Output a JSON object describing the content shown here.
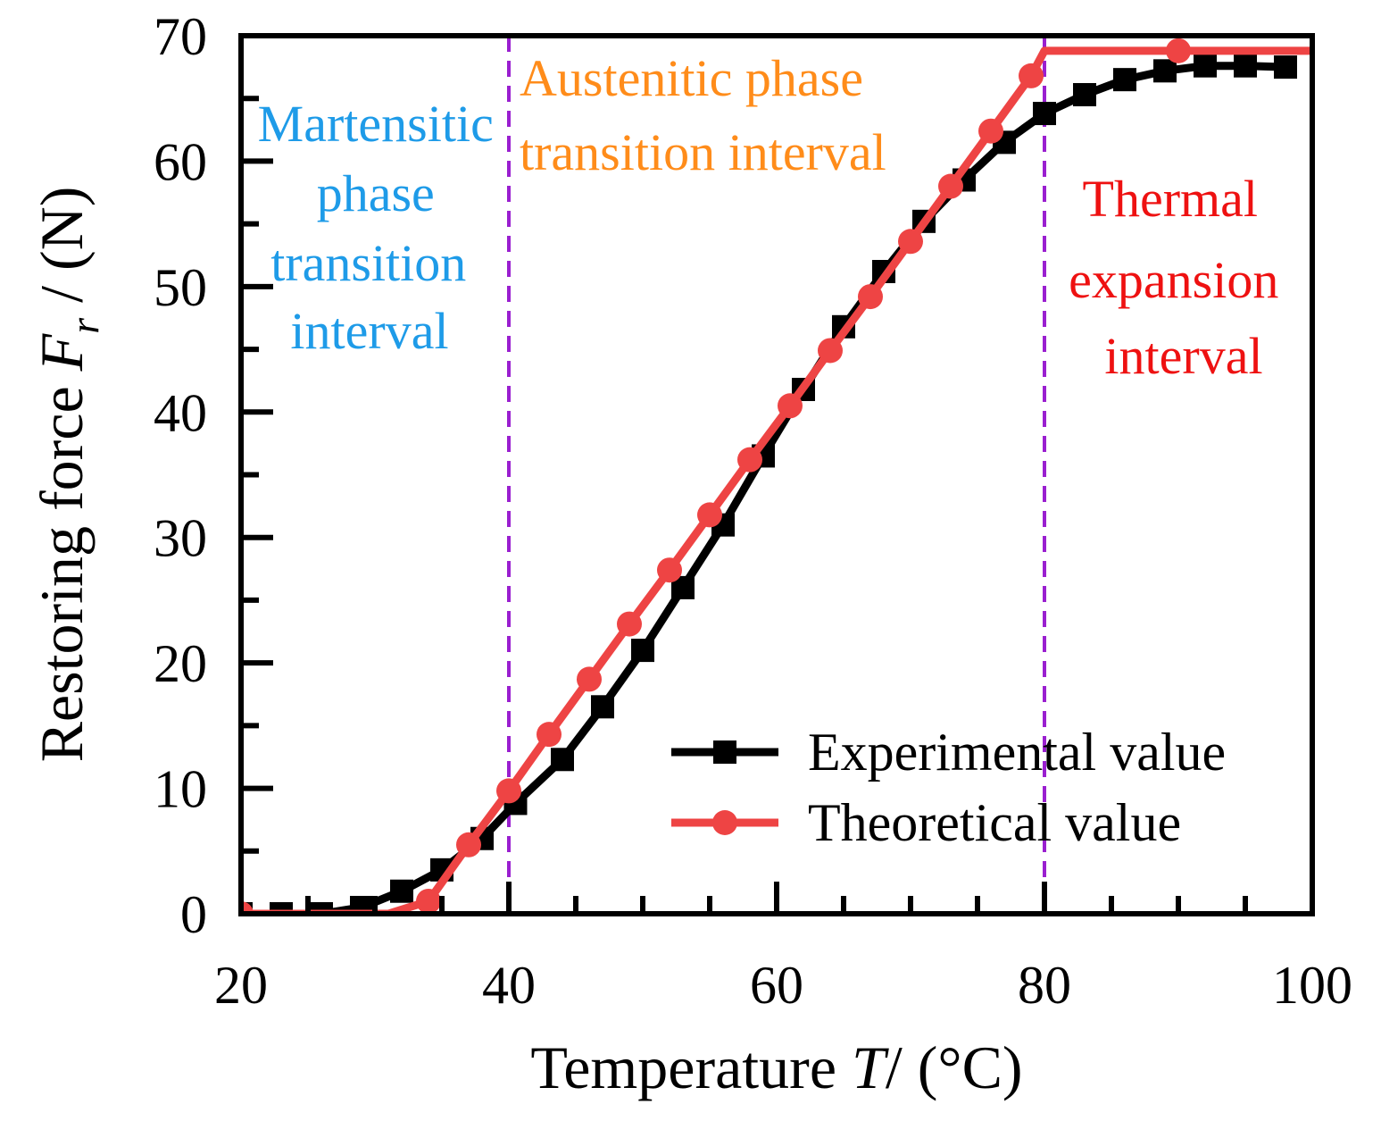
{
  "chart_data": {
    "type": "line",
    "xlabel_main": "Temperature ",
    "xlabel_var": "T",
    "xlabel_unit": "/ (°C)",
    "ylabel_main": "Restoring force ",
    "ylabel_var": "F",
    "ylabel_sub": "r",
    "ylabel_unit": " / (N)",
    "xlim": [
      20,
      100
    ],
    "ylim": [
      0,
      70
    ],
    "xticks": [
      20,
      40,
      60,
      80,
      100
    ],
    "yticks": [
      0,
      10,
      20,
      30,
      40,
      50,
      60,
      70
    ],
    "vlines": [
      40,
      80
    ],
    "series": [
      {
        "name": "Experimental value",
        "color": "#000000",
        "marker": "square",
        "x": [
          20,
          23,
          26,
          29,
          32,
          35,
          38,
          40.5,
          44,
          47,
          50,
          53,
          56,
          59,
          62,
          65,
          68,
          71,
          74,
          77,
          80,
          83,
          86,
          89,
          92,
          95,
          98
        ],
        "y": [
          0,
          0,
          0,
          0.5,
          1.8,
          3.5,
          6,
          8.8,
          12.3,
          16.5,
          21,
          26,
          31,
          36.5,
          41.8,
          46.8,
          51.2,
          55.2,
          58.5,
          61.5,
          63.8,
          65.3,
          66.5,
          67.2,
          67.6,
          67.6,
          67.5
        ]
      },
      {
        "name": "Theoretical value",
        "color": "#ee4444",
        "marker": "circle",
        "x": [
          20,
          31,
          34,
          37,
          40,
          43,
          46,
          49,
          52,
          55,
          58,
          61,
          64,
          67,
          70,
          73,
          76,
          79,
          80,
          90,
          100
        ],
        "y": [
          0,
          0,
          1,
          5.5,
          9.8,
          14.3,
          18.7,
          23.1,
          27.4,
          31.8,
          36.2,
          40.5,
          44.9,
          49.2,
          53.6,
          58,
          62.4,
          66.8,
          68.8,
          68.8,
          68.8
        ],
        "markers": [
          0,
          2,
          3,
          4,
          5,
          6,
          7,
          8,
          9,
          10,
          11,
          12,
          13,
          14,
          15,
          16,
          17,
          19
        ]
      }
    ],
    "annotations": [
      {
        "lines": [
          "Martensitic",
          "phase",
          "transition",
          "interval"
        ],
        "color": "#1e9be8"
      },
      {
        "lines": [
          "Austenitic phase",
          "transition interval"
        ],
        "color": "#ff8c1a"
      },
      {
        "lines": [
          "Thermal",
          "expansion",
          "interval"
        ],
        "color": "#ee1111"
      }
    ]
  },
  "colors": {
    "divider": "#9a1fd0"
  }
}
